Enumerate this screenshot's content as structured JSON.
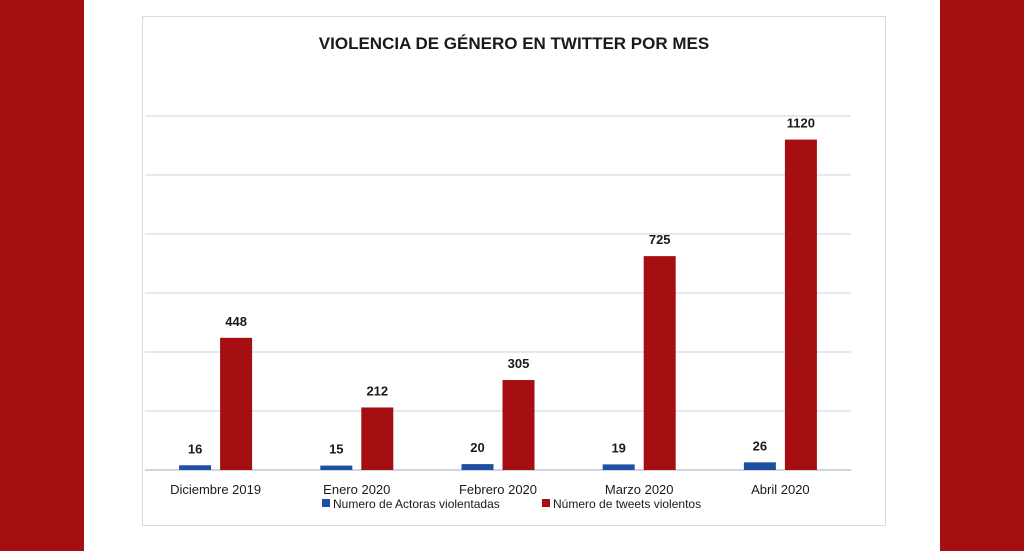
{
  "chart_data": {
    "type": "bar",
    "title": "VIOLENCIA DE GÉNERO EN TWITTER POR MES",
    "xlabel": "",
    "ylabel": "",
    "categories": [
      "Diciembre 2019",
      "Enero 2020",
      "Febrero 2020",
      "Marzo 2020",
      "Abril 2020"
    ],
    "series": [
      {
        "name": "Numero de Actoras violentadas",
        "color": "#1f4fa3",
        "values": [
          16,
          15,
          20,
          19,
          26
        ]
      },
      {
        "name": "Número de tweets violentos",
        "color": "#a50f12",
        "values": [
          448,
          212,
          305,
          725,
          1120
        ]
      }
    ],
    "ylim": [
      0,
      1200
    ],
    "grid": true,
    "legend": "bottom"
  }
}
